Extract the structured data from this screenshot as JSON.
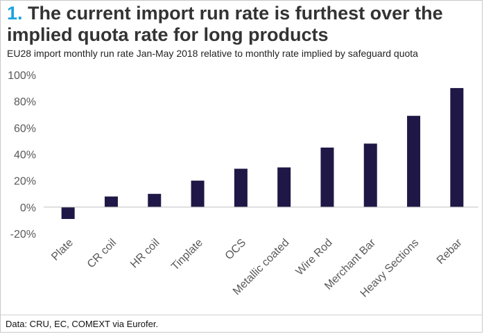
{
  "header": {
    "title_number": "1.",
    "title_text": "The current import run rate is furthest over the implied quota rate for long products",
    "subtitle": "EU28 import monthly run rate Jan-May 2018 relative to monthly rate implied by safeguard quota"
  },
  "footer": {
    "source": "Data: CRU, EC, COMEXT via Eurofer."
  },
  "colors": {
    "bar": "#1f1846",
    "accent": "#1aa3e0",
    "axis_text": "#595959"
  },
  "chart_data": {
    "type": "bar",
    "categories": [
      "Plate",
      "CR coil",
      "HR coil",
      "Tinplate",
      "OCS",
      "Metallic coated",
      "Wire Rod",
      "Merchant Bar",
      "Heavy Sections",
      "Rebar"
    ],
    "values": [
      -9,
      8,
      10,
      20,
      29,
      30,
      45,
      48,
      69,
      90
    ],
    "unit": "%",
    "ylim": [
      -20,
      100
    ],
    "yticks": [
      -20,
      0,
      20,
      40,
      60,
      80,
      100
    ],
    "ytick_labels": [
      "-20%",
      "0%",
      "20%",
      "40%",
      "60%",
      "80%",
      "100%"
    ],
    "grid": false,
    "legend": "none"
  }
}
